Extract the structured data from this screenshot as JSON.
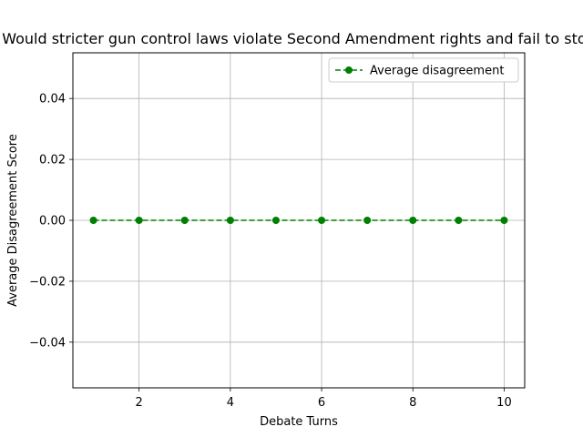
{
  "chart_data": {
    "type": "line",
    "title": "Would stricter gun control laws violate Second Amendment rights and fail to stop",
    "xlabel": "Debate Turns",
    "ylabel": "Average Disagreement Score",
    "xlim": [
      0.55,
      10.45
    ],
    "ylim": [
      -0.055,
      0.055
    ],
    "xticks": [
      2,
      4,
      6,
      8,
      10
    ],
    "xtick_labels": [
      "2",
      "4",
      "6",
      "8",
      "10"
    ],
    "yticks": [
      -0.04,
      -0.02,
      0.0,
      0.02,
      0.04
    ],
    "ytick_labels": [
      "−0.04",
      "−0.02",
      "0.00",
      "0.02",
      "0.04"
    ],
    "grid": true,
    "legend_position": "top-right",
    "series": [
      {
        "name": "Average disagreement",
        "color": "#008000",
        "line_style": "dashed",
        "marker": "circle",
        "x": [
          1,
          2,
          3,
          4,
          5,
          6,
          7,
          8,
          9,
          10
        ],
        "y": [
          0,
          0,
          0,
          0,
          0,
          0,
          0,
          0,
          0,
          0
        ]
      }
    ]
  }
}
